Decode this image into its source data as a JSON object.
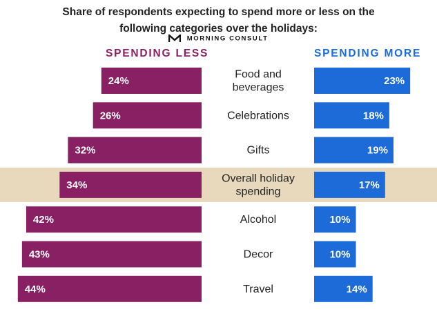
{
  "title": "Share of respondents expecting to spend more or less on the following categories over the holidays:",
  "brand": "MORNING CONSULT",
  "colors": {
    "less": "#8a2064",
    "more": "#1d6bd9",
    "highlight": "#e8d9bd"
  },
  "chart_data": {
    "type": "bar",
    "orientation": "horizontal-diverging",
    "title": "Share of respondents expecting to spend more or less on the following categories over the holidays:",
    "categories": [
      [
        "Food and",
        "beverages"
      ],
      [
        "Celebrations"
      ],
      [
        "Gifts"
      ],
      [
        "Overall holiday",
        "spending"
      ],
      [
        "Alcohol"
      ],
      [
        "Decor"
      ],
      [
        "Travel"
      ]
    ],
    "highlighted_category_index": 3,
    "series": [
      {
        "name": "SPENDING LESS",
        "values": [
          24,
          26,
          32,
          34,
          42,
          43,
          44
        ],
        "labels": [
          "24%",
          "26%",
          "32%",
          "34%",
          "42%",
          "43%",
          "44%"
        ]
      },
      {
        "name": "SPENDING MORE",
        "values": [
          23,
          18,
          19,
          17,
          10,
          10,
          14
        ],
        "labels": [
          "23%",
          "18%",
          "19%",
          "17%",
          "10%",
          "10%",
          "14%"
        ]
      }
    ],
    "unit": "%"
  }
}
